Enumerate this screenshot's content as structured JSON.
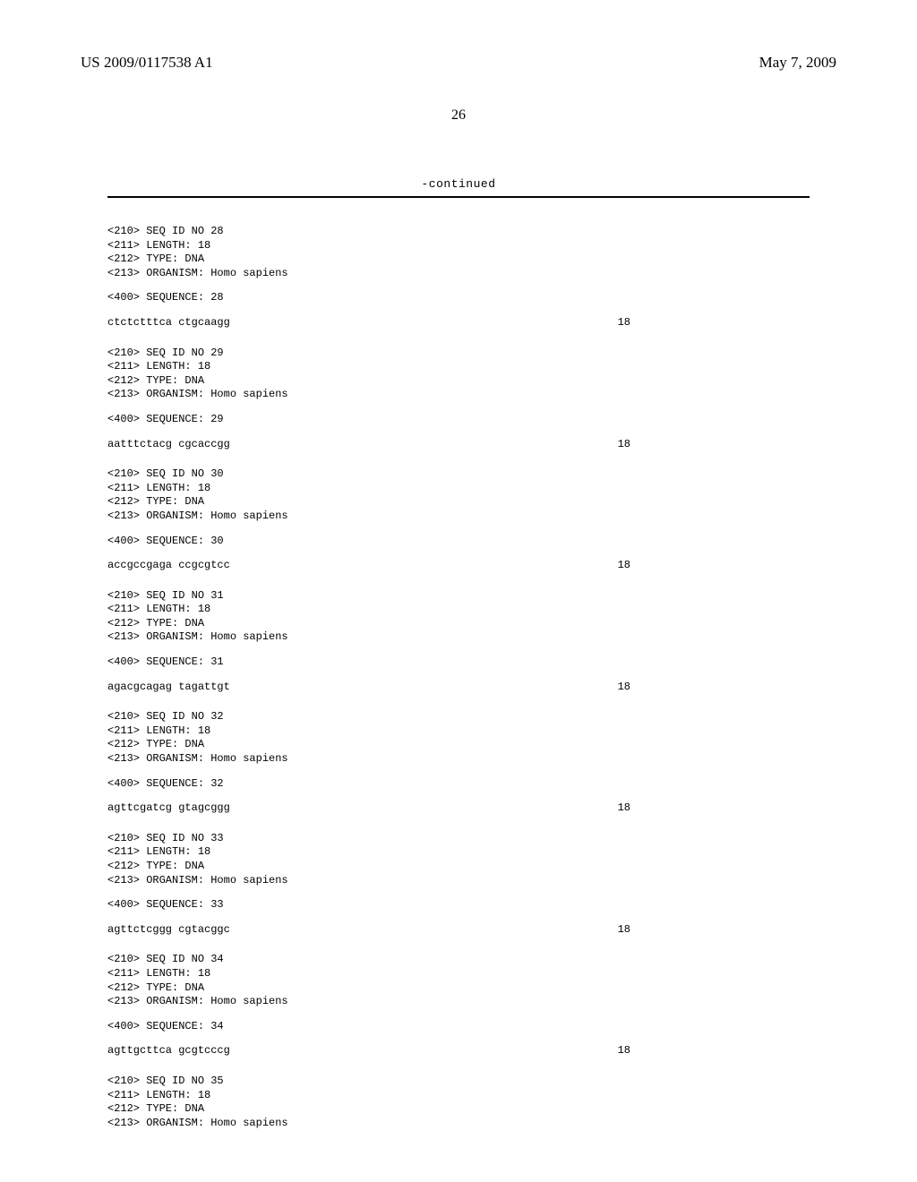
{
  "header": {
    "pub_number": "US 2009/0117538 A1",
    "pub_date": "May 7, 2009",
    "page_number": "26",
    "continued_label": "-continued"
  },
  "sequences": [
    {
      "id_line": "<210> SEQ ID NO 28",
      "length_line": "<211> LENGTH: 18",
      "type_line": "<212> TYPE: DNA",
      "organism_line": "<213> ORGANISM: Homo sapiens",
      "seq_marker": "<400> SEQUENCE: 28",
      "seq_text": "ctctctttca ctgcaagg",
      "seq_len": "18"
    },
    {
      "id_line": "<210> SEQ ID NO 29",
      "length_line": "<211> LENGTH: 18",
      "type_line": "<212> TYPE: DNA",
      "organism_line": "<213> ORGANISM: Homo sapiens",
      "seq_marker": "<400> SEQUENCE: 29",
      "seq_text": "aatttctacg cgcaccgg",
      "seq_len": "18"
    },
    {
      "id_line": "<210> SEQ ID NO 30",
      "length_line": "<211> LENGTH: 18",
      "type_line": "<212> TYPE: DNA",
      "organism_line": "<213> ORGANISM: Homo sapiens",
      "seq_marker": "<400> SEQUENCE: 30",
      "seq_text": "accgccgaga ccgcgtcc",
      "seq_len": "18"
    },
    {
      "id_line": "<210> SEQ ID NO 31",
      "length_line": "<211> LENGTH: 18",
      "type_line": "<212> TYPE: DNA",
      "organism_line": "<213> ORGANISM: Homo sapiens",
      "seq_marker": "<400> SEQUENCE: 31",
      "seq_text": "agacgcagag tagattgt",
      "seq_len": "18"
    },
    {
      "id_line": "<210> SEQ ID NO 32",
      "length_line": "<211> LENGTH: 18",
      "type_line": "<212> TYPE: DNA",
      "organism_line": "<213> ORGANISM: Homo sapiens",
      "seq_marker": "<400> SEQUENCE: 32",
      "seq_text": "agttcgatcg gtagcggg",
      "seq_len": "18"
    },
    {
      "id_line": "<210> SEQ ID NO 33",
      "length_line": "<211> LENGTH: 18",
      "type_line": "<212> TYPE: DNA",
      "organism_line": "<213> ORGANISM: Homo sapiens",
      "seq_marker": "<400> SEQUENCE: 33",
      "seq_text": "agttctcggg cgtacggc",
      "seq_len": "18"
    },
    {
      "id_line": "<210> SEQ ID NO 34",
      "length_line": "<211> LENGTH: 18",
      "type_line": "<212> TYPE: DNA",
      "organism_line": "<213> ORGANISM: Homo sapiens",
      "seq_marker": "<400> SEQUENCE: 34",
      "seq_text": "agttgcttca gcgtcccg",
      "seq_len": "18"
    },
    {
      "id_line": "<210> SEQ ID NO 35",
      "length_line": "<211> LENGTH: 18",
      "type_line": "<212> TYPE: DNA",
      "organism_line": "<213> ORGANISM: Homo sapiens",
      "seq_marker": "",
      "seq_text": "",
      "seq_len": ""
    }
  ]
}
